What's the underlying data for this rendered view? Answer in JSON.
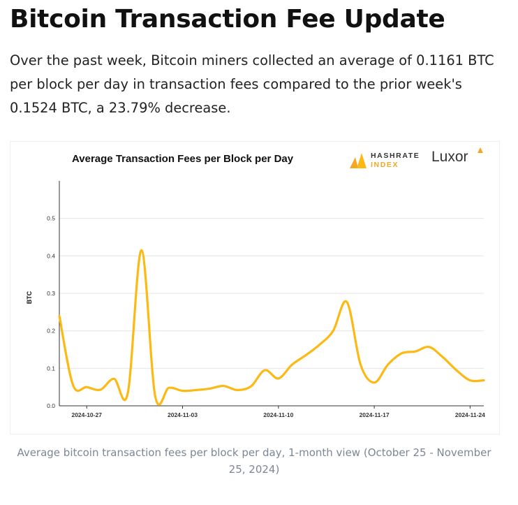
{
  "header": {
    "title": "Bitcoin Transaction Fee Update",
    "lede": "Over the past week, Bitcoin miners collected an average of 0.1161 BTC per block per day in transaction fees compared to the prior week's 0.1524 BTC, a 23.79% decrease."
  },
  "logos": {
    "hashrate_line1": "HASHRATE",
    "hashrate_line2": "INDEX",
    "luxor": "Luxor"
  },
  "colors": {
    "line": "#FDB913",
    "accent": "#F5A623"
  },
  "chart_data": {
    "type": "line",
    "title": "Average Transaction Fees per Block per Day",
    "xlabel": "",
    "ylabel": "BTC",
    "xlim": [
      "2024-10-25",
      "2024-11-25"
    ],
    "ylim": [
      0,
      0.6
    ],
    "yticks": [
      "0.0",
      "0.1",
      "0.2",
      "0.3",
      "0.4",
      "0.5"
    ],
    "xticks": [
      "2024-10-27",
      "2024-11-03",
      "2024-11-10",
      "2024-11-17",
      "2024-11-24"
    ],
    "grid": "horizontal",
    "series": [
      {
        "x": [
          "2024-10-25",
          "2024-10-26",
          "2024-10-27",
          "2024-10-28",
          "2024-10-29",
          "2024-10-30",
          "2024-10-31",
          "2024-11-01",
          "2024-11-02",
          "2024-11-03",
          "2024-11-04",
          "2024-11-05",
          "2024-11-06",
          "2024-11-07",
          "2024-11-08",
          "2024-11-09",
          "2024-11-10",
          "2024-11-11",
          "2024-11-12",
          "2024-11-13",
          "2024-11-14",
          "2024-11-15",
          "2024-11-16",
          "2024-11-17",
          "2024-11-18",
          "2024-11-19",
          "2024-11-20",
          "2024-11-21",
          "2024-11-22",
          "2024-11-23",
          "2024-11-24",
          "2024-11-25"
        ],
        "values": [
          0.24,
          0.055,
          0.05,
          0.043,
          0.072,
          0.034,
          0.415,
          0.026,
          0.048,
          0.04,
          0.042,
          0.046,
          0.053,
          0.042,
          0.052,
          0.095,
          0.073,
          0.11,
          0.135,
          0.163,
          0.2,
          0.277,
          0.11,
          0.062,
          0.11,
          0.14,
          0.145,
          0.157,
          0.13,
          0.095,
          0.068,
          0.068
        ]
      }
    ]
  },
  "caption": "Average bitcoin transaction fees per block per day, 1-month view (October 25 - November 25, 2024)"
}
